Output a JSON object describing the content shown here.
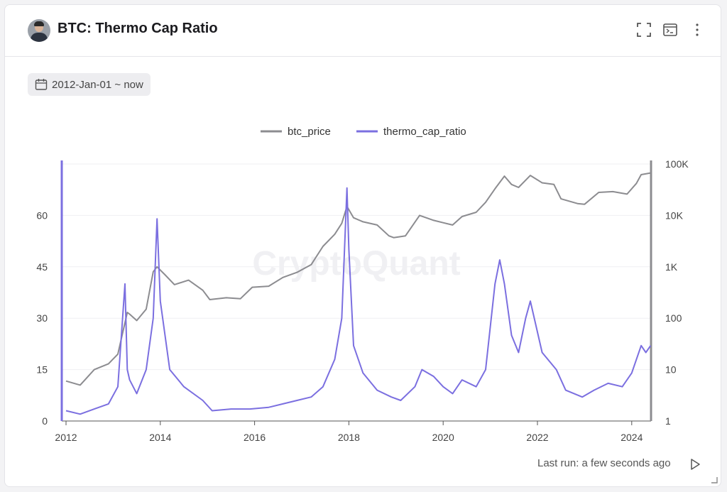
{
  "header": {
    "title": "BTC: Thermo Cap Ratio",
    "icons": [
      "fullscreen-icon",
      "terminal-icon",
      "more-vertical-icon"
    ]
  },
  "date_range": {
    "label": "2012-Jan-01 ~ now",
    "icon": "calendar-icon"
  },
  "footer": {
    "last_run": "Last run: a few seconds ago",
    "icon": "play-icon"
  },
  "colors": {
    "btc_price": "#8c8c90",
    "thermo_cap_ratio": "#7b6fe0",
    "accent": "#7b6fe0"
  },
  "watermark": "CryptoQuant",
  "chart_data": {
    "type": "line",
    "legend": {
      "placement": "top-center",
      "entries": [
        "btc_price",
        "thermo_cap_ratio"
      ]
    },
    "x_axis": {
      "min": 2012.0,
      "max": 2024.5,
      "ticks": [
        "2012",
        "2014",
        "2016",
        "2018",
        "2020",
        "2022",
        "2024"
      ]
    },
    "y_left": {
      "min": 0,
      "max": 75,
      "ticks": [
        "0",
        "15",
        "30",
        "45",
        "60"
      ]
    },
    "y_right": {
      "scale": "log",
      "min": 1,
      "max": 100000,
      "ticks": [
        "1",
        "10",
        "100",
        "1K",
        "10K",
        "100K"
      ]
    },
    "grid": true,
    "series": [
      {
        "name": "btc_price",
        "axis": "right",
        "x": [
          2012.0,
          2012.3,
          2012.6,
          2012.9,
          2013.1,
          2013.3,
          2013.35,
          2013.5,
          2013.7,
          2013.85,
          2013.93,
          2014.1,
          2014.3,
          2014.6,
          2014.9,
          2015.05,
          2015.4,
          2015.7,
          2015.95,
          2016.3,
          2016.6,
          2016.9,
          2017.2,
          2017.45,
          2017.7,
          2017.85,
          2017.96,
          2018.1,
          2018.3,
          2018.6,
          2018.85,
          2018.95,
          2019.2,
          2019.5,
          2019.8,
          2020.0,
          2020.2,
          2020.4,
          2020.7,
          2020.9,
          2021.1,
          2021.3,
          2021.45,
          2021.6,
          2021.85,
          2022.1,
          2022.35,
          2022.5,
          2022.85,
          2023.0,
          2023.3,
          2023.6,
          2023.9,
          2024.1,
          2024.2,
          2024.4
        ],
        "values": [
          6,
          5,
          10,
          13,
          20,
          130,
          120,
          90,
          150,
          800,
          1000,
          700,
          450,
          550,
          350,
          230,
          250,
          240,
          400,
          420,
          620,
          780,
          1100,
          2500,
          4300,
          7000,
          15000,
          9000,
          7500,
          6500,
          4000,
          3700,
          4000,
          10000,
          8000,
          7200,
          6500,
          9500,
          11500,
          18000,
          33000,
          58000,
          40000,
          35000,
          60000,
          43000,
          40000,
          21000,
          17000,
          16500,
          28000,
          29000,
          26000,
          42000,
          62000,
          67000
        ]
      },
      {
        "name": "thermo_cap_ratio",
        "axis": "left",
        "x": [
          2012.0,
          2012.3,
          2012.6,
          2012.9,
          2013.1,
          2013.25,
          2013.27,
          2013.3,
          2013.35,
          2013.5,
          2013.7,
          2013.85,
          2013.93,
          2014.0,
          2014.2,
          2014.5,
          2014.9,
          2015.1,
          2015.5,
          2015.9,
          2016.3,
          2016.6,
          2016.9,
          2017.2,
          2017.45,
          2017.7,
          2017.85,
          2017.96,
          2018.0,
          2018.1,
          2018.3,
          2018.6,
          2018.9,
          2019.1,
          2019.4,
          2019.55,
          2019.8,
          2020.0,
          2020.2,
          2020.4,
          2020.7,
          2020.9,
          2021.1,
          2021.2,
          2021.3,
          2021.45,
          2021.6,
          2021.75,
          2021.85,
          2022.1,
          2022.4,
          2022.6,
          2022.95,
          2023.2,
          2023.5,
          2023.8,
          2024.0,
          2024.2,
          2024.3,
          2024.4
        ],
        "values": [
          3,
          2,
          3.5,
          5,
          10,
          40,
          30,
          15,
          12,
          8,
          15,
          30,
          59,
          35,
          15,
          10,
          6,
          3,
          3.5,
          3.5,
          4,
          5,
          6,
          7,
          10,
          18,
          30,
          68,
          50,
          22,
          14,
          9,
          7,
          6,
          10,
          15,
          13,
          10,
          8,
          12,
          10,
          15,
          40,
          47,
          40,
          25,
          20,
          30,
          35,
          20,
          15,
          9,
          7,
          9,
          11,
          10,
          14,
          22,
          20,
          22
        ]
      }
    ]
  }
}
